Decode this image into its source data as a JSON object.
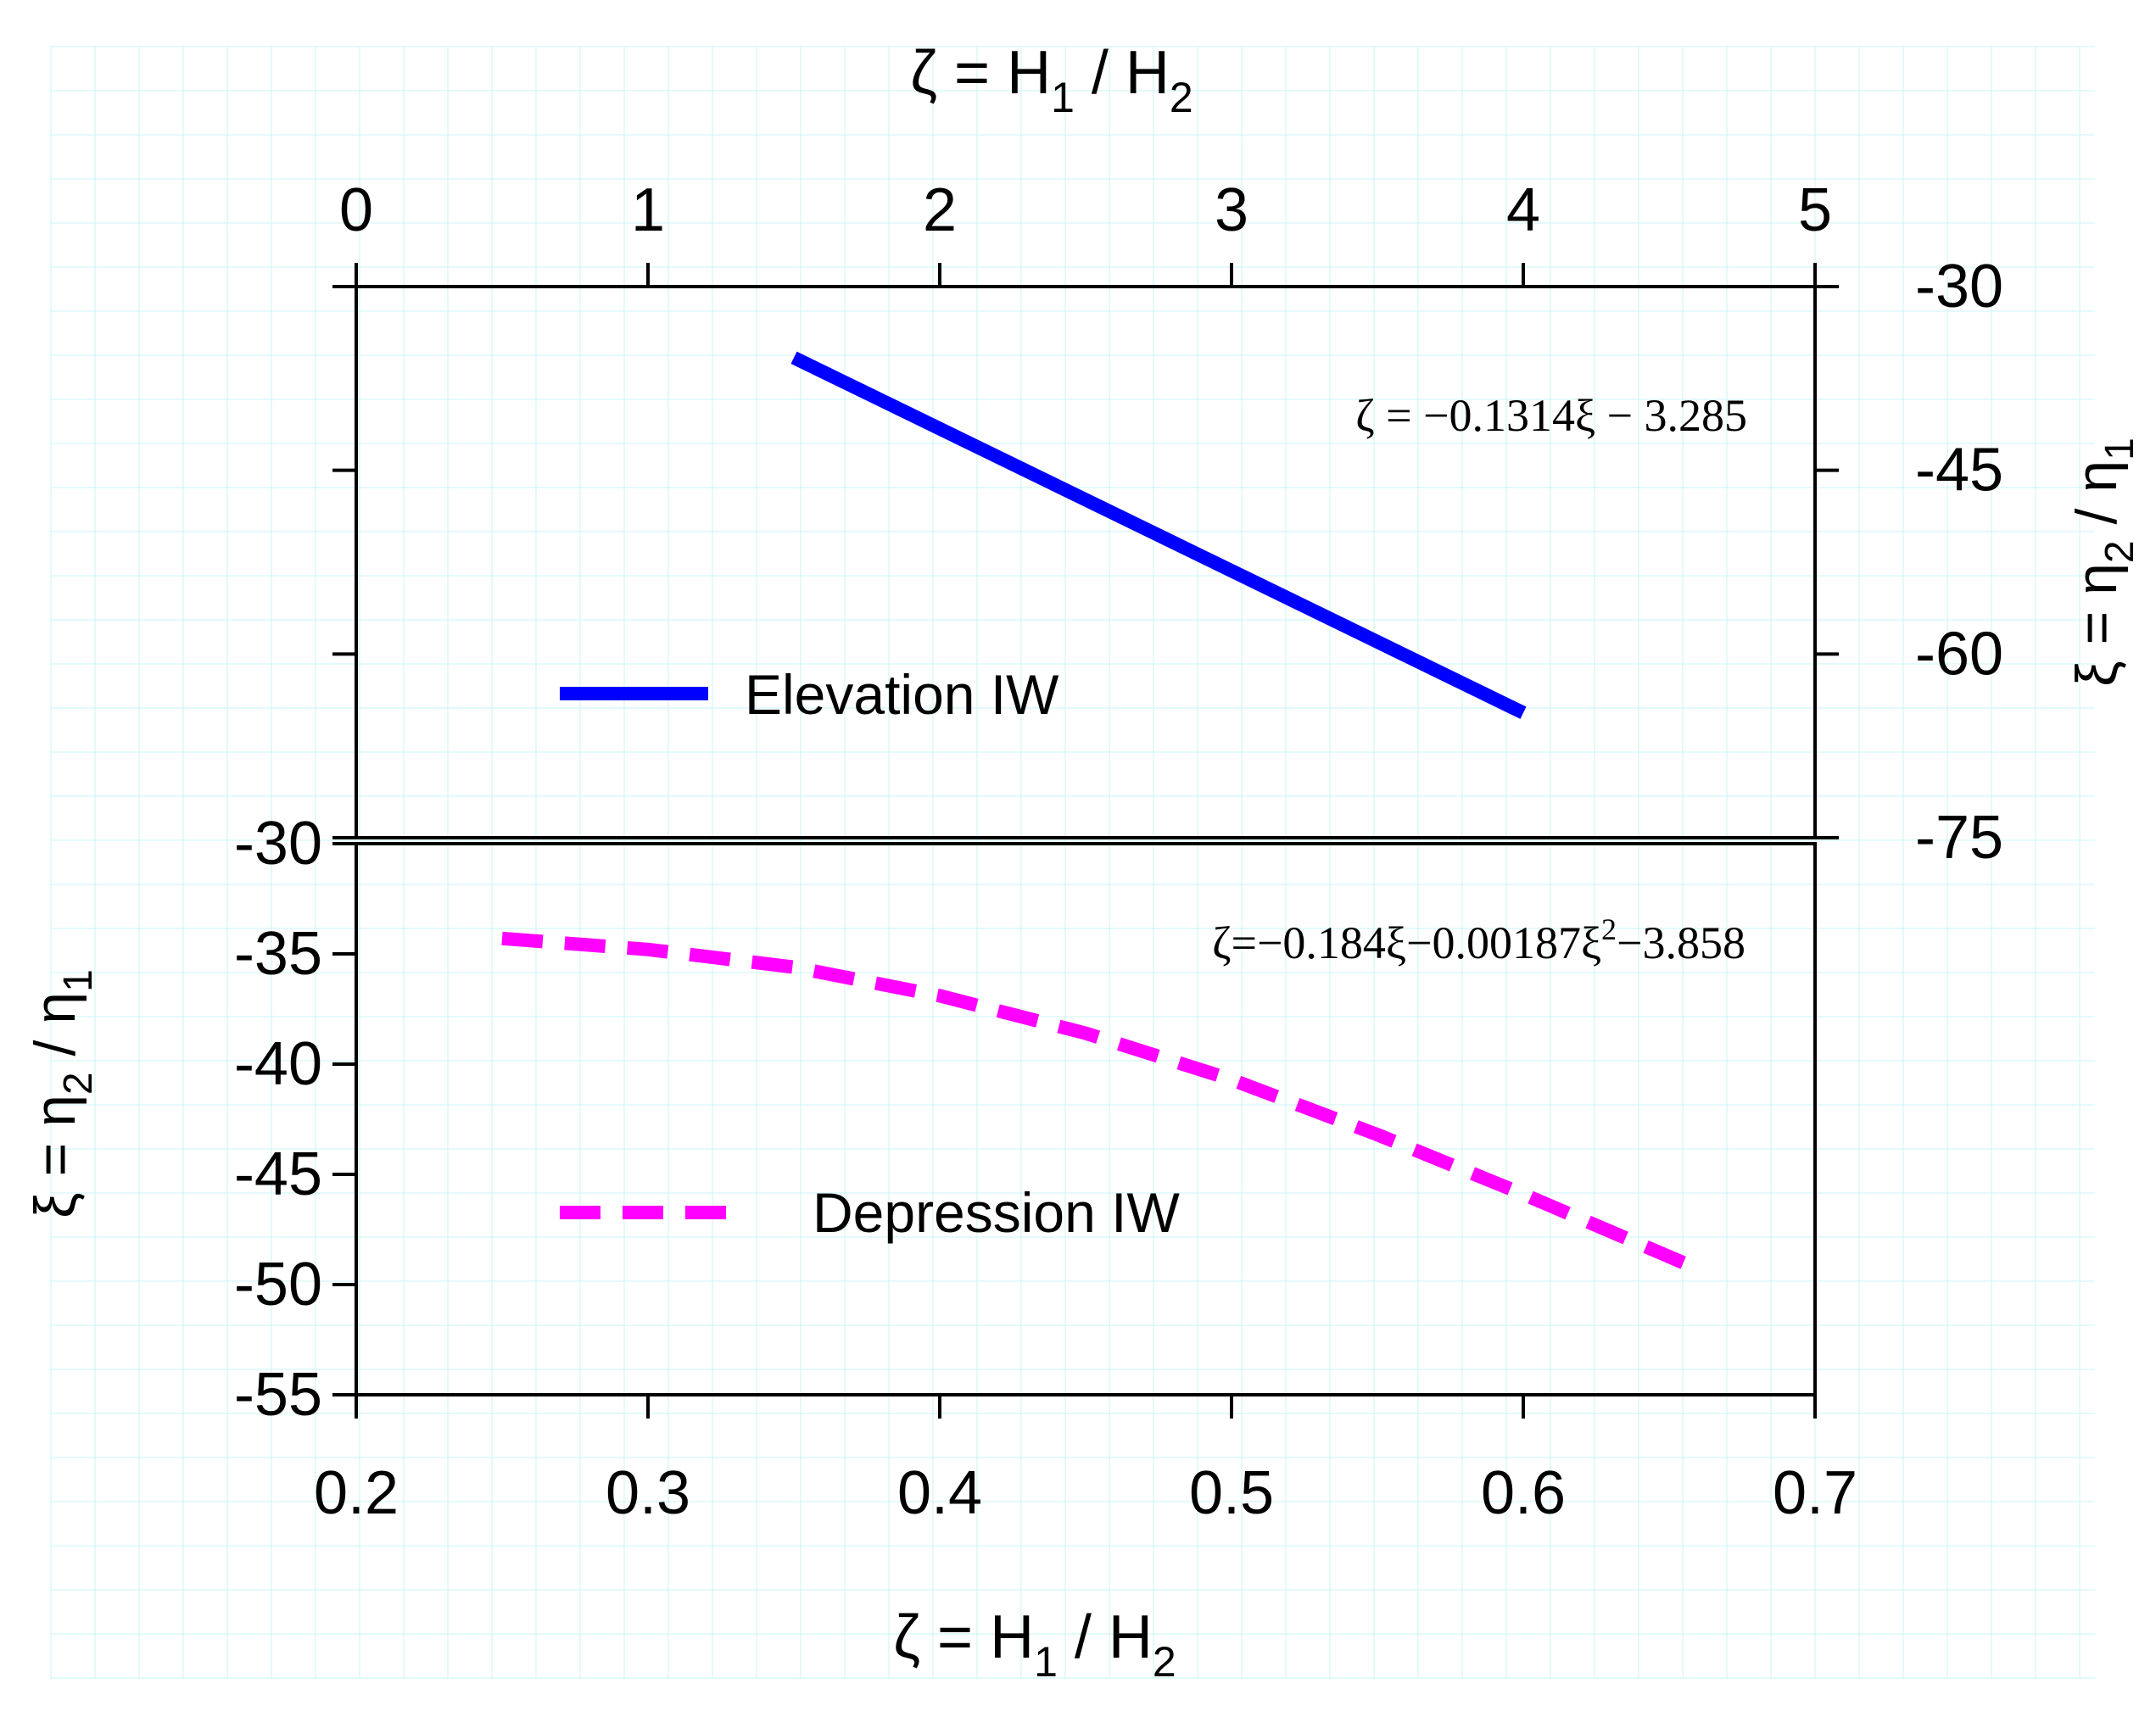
{
  "colors": {
    "background_grid": "#c8f4f4",
    "elevation": "#0000ff",
    "depression": "#ff00ff",
    "axis": "#000000"
  },
  "chart_data": [
    {
      "id": "elevation",
      "type": "line",
      "panel": "top",
      "xaxis_position": "top",
      "yaxis_position": "right",
      "xlabel": "ζ = H1 / H2",
      "ylabel": "ξ = η2 / η1",
      "xlim": [
        0,
        5
      ],
      "ylim": [
        -75,
        -30
      ],
      "xticks": [
        0,
        1,
        2,
        3,
        4,
        5
      ],
      "xtick_labels": [
        "0",
        "1",
        "2",
        "3",
        "4",
        "5"
      ],
      "yticks": [
        -30,
        -45,
        -60,
        -75
      ],
      "ytick_labels": [
        "-30",
        "-45",
        "-60",
        "-75"
      ],
      "equation": "ζ = −0.1314ξ − 3.285",
      "series": [
        {
          "name": "Elevation IW",
          "style": "solid",
          "x": [
            1.5,
            4.0
          ],
          "y": [
            -35.8,
            -64.8
          ]
        }
      ],
      "legend": {
        "label": "Elevation IW",
        "placement": "center-left"
      }
    },
    {
      "id": "depression",
      "type": "line",
      "panel": "bottom",
      "xaxis_position": "bottom",
      "yaxis_position": "left",
      "xlabel": "ζ = H1 / H2",
      "ylabel": "ξ = η2 / η1",
      "xlim": [
        0.2,
        0.7
      ],
      "ylim": [
        -55,
        -30
      ],
      "xticks": [
        0.2,
        0.3,
        0.4,
        0.5,
        0.6,
        0.7
      ],
      "xtick_labels": [
        "0.2",
        "0.3",
        "0.4",
        "0.5",
        "0.6",
        "0.7"
      ],
      "yticks": [
        -30,
        -35,
        -40,
        -45,
        -50,
        -55
      ],
      "ytick_labels": [
        "-30",
        "-35",
        "-40",
        "-45",
        "-50",
        "-55"
      ],
      "equation": "ζ=−0.184ξ−0.00187ξ²−3.858",
      "series": [
        {
          "name": "Depression IW",
          "style": "dashed",
          "x": [
            0.25,
            0.3,
            0.35,
            0.4,
            0.45,
            0.5,
            0.55,
            0.6,
            0.66
          ],
          "y": [
            -34.3,
            -34.8,
            -35.6,
            -36.9,
            -38.6,
            -40.7,
            -43.2,
            -45.9,
            -49.3
          ]
        }
      ],
      "legend": {
        "label": "Depression IW",
        "placement": "bottom-left"
      }
    }
  ],
  "labels": {
    "top_xlabel_main": "ζ = H",
    "top_xlabel_sub1": "1",
    "top_xlabel_mid": " / H",
    "top_xlabel_sub2": "2",
    "bottom_xlabel_main": "ζ = H",
    "bottom_xlabel_sub1": "1",
    "bottom_xlabel_mid": " / H",
    "bottom_xlabel_sub2": "2",
    "ylabel_main": "ξ = η",
    "ylabel_sub1": "2",
    "ylabel_mid": " / η",
    "ylabel_sub2": "1",
    "elev_eq": "ζ = −0.1314ξ − 3.285",
    "dep_eq_a": "ζ=−0.184ξ−0.00187ξ",
    "dep_eq_sup": "2",
    "dep_eq_b": "−3.858"
  }
}
